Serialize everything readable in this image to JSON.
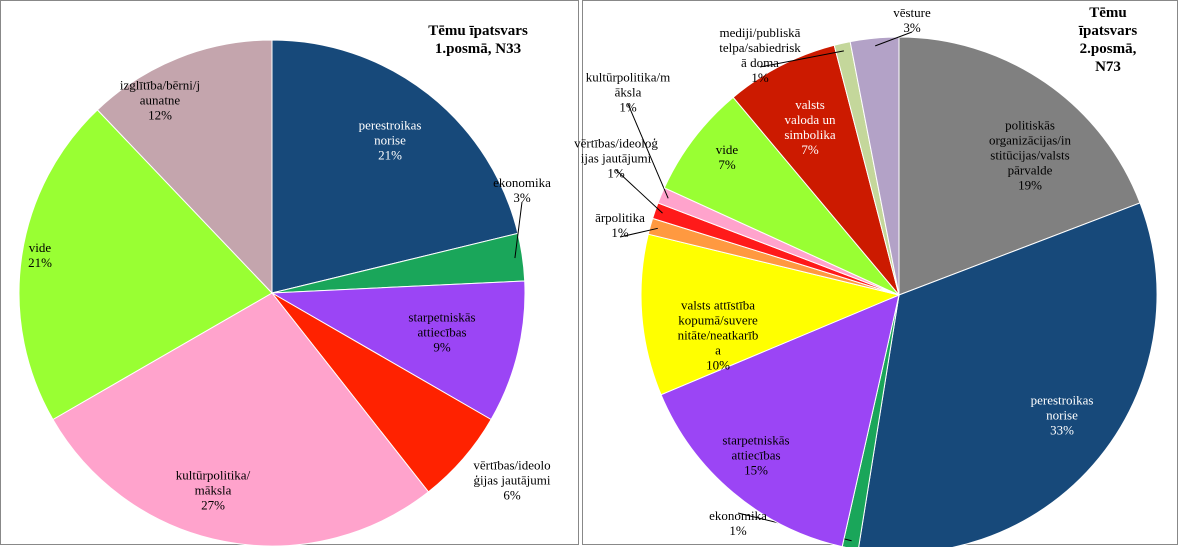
{
  "chart_data": [
    {
      "type": "pie",
      "title": "Tēmu īpatsvars\n1.posmā, N33",
      "categories": [
        "perestroikas\nnorise",
        "ekonomika",
        "starpetniskās\nattiecības",
        "vērtības/ideolo\nģijas jautājumi",
        "kultūrpolitika/\nmāksla",
        "vide",
        "izglītība/bērni/j\naunatne"
      ],
      "values": [
        21,
        3,
        9,
        6,
        27,
        21,
        12
      ],
      "value_labels": [
        "21%",
        "3%",
        "9%",
        "6%",
        "27%",
        "21%",
        "12%"
      ],
      "colors": [
        "#17497a",
        "#1aa65a",
        "#9b45f5",
        "#ff2200",
        "#ffa3cc",
        "#99ff33",
        "#c4a5ad"
      ]
    },
    {
      "type": "pie",
      "title": "Tēmu īpatsvars\n2.posmā, N73",
      "categories": [
        "politiskās\norganizācijas/in\nstitūcijas/valsts\npārvalde",
        "perestroikas\nnorise",
        "ekonomika",
        "starpetniskās\nattiecības",
        "valsts attīstība\nkopumā/suvere\nnitāte/neatkarīb\na",
        "ārpolitika",
        "vērtības/ideoloģ\nijas jautājumi",
        "kultūrpolitika/m\nāksla",
        "vide",
        "valsts\nvaloda un\nsimbolika",
        "mediji/publiskā\ntelpa/sabiedrisk\nā doma",
        "vēsture"
      ],
      "values": [
        19,
        33,
        1,
        15,
        10,
        1,
        1,
        1,
        7,
        7,
        1,
        3
      ],
      "value_labels": [
        "19%",
        "33%",
        "1%",
        "15%",
        "10%",
        "1%",
        "1%",
        "1%",
        "7%",
        "7%",
        "1%",
        "3%"
      ],
      "colors": [
        "#808080",
        "#17497a",
        "#1aa65a",
        "#9b45f5",
        "#ffff00",
        "#ff9940",
        "#ff1a1a",
        "#ffa3cc",
        "#99ff33",
        "#cc1a00",
        "#c4d79b",
        "#b3a2c7"
      ]
    }
  ]
}
